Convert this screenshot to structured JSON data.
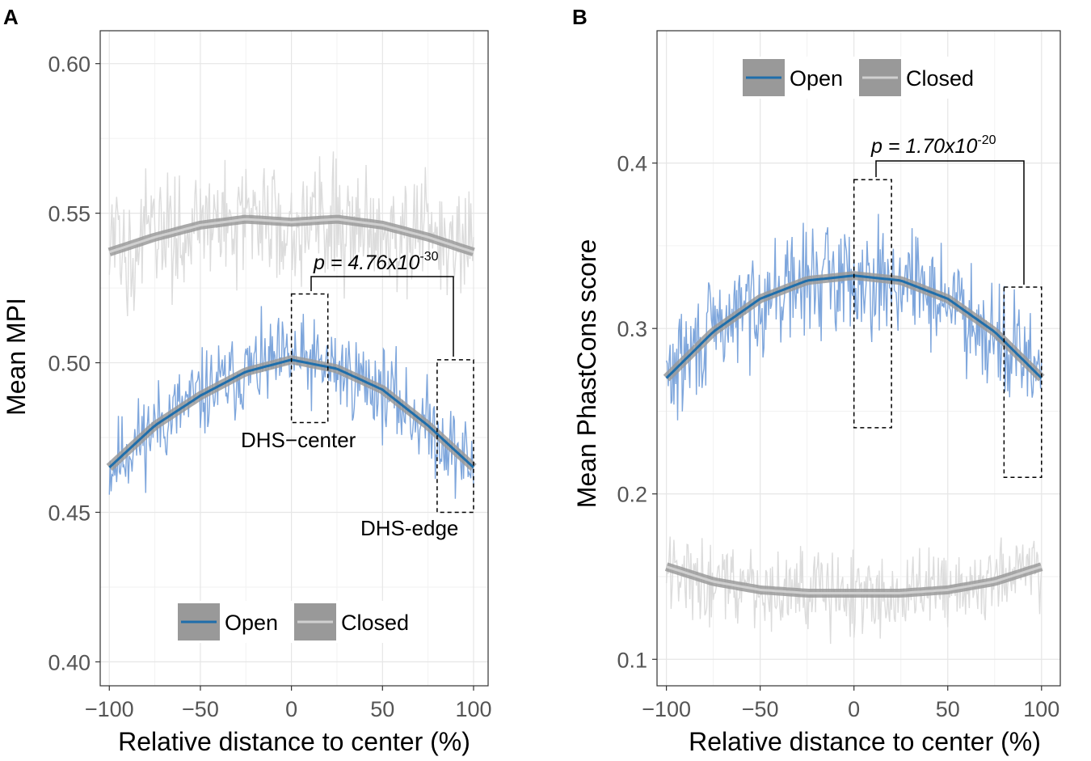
{
  "chart_data": [
    {
      "panel": "A",
      "type": "line",
      "xlabel": "Relative distance to center (%)",
      "ylabel": "Mean MPI",
      "xlim": [
        -105,
        108
      ],
      "ylim": [
        0.392,
        0.611
      ],
      "xticks": [
        -100,
        -50,
        0,
        50,
        100
      ],
      "xtick_labels": [
        "−100",
        "−50",
        "0",
        "50",
        "100"
      ],
      "yticks": [
        0.4,
        0.45,
        0.5,
        0.55,
        0.6
      ],
      "ytick_labels": [
        "0.40",
        "0.45",
        "0.50",
        "0.55",
        "0.60"
      ],
      "grid": true,
      "legend_position": "bottom-center",
      "series": [
        {
          "name": "Open",
          "line_color": "#1f6eab",
          "raw_color": "#7ea6dc",
          "trend": {
            "x": [
              -100,
              -75,
              -50,
              -25,
              0,
              25,
              50,
              75,
              100
            ],
            "y": [
              0.465,
              0.479,
              0.489,
              0.497,
              0.501,
              0.498,
              0.491,
              0.479,
              0.465
            ]
          },
          "noise_amplitude": 0.018
        },
        {
          "name": "Closed",
          "line_color": "#d0d0d0",
          "raw_color": "#dcdcdc",
          "trend": {
            "x": [
              -100,
              -75,
              -50,
              -25,
              0,
              25,
              50,
              75,
              100
            ],
            "y": [
              0.537,
              0.542,
              0.546,
              0.548,
              0.547,
              0.548,
              0.546,
              0.542,
              0.537
            ]
          },
          "noise_amplitude": 0.025
        }
      ],
      "regions": [
        {
          "label": "DHS−center",
          "x": [
            0,
            20
          ],
          "y": [
            0.48,
            0.523
          ]
        },
        {
          "label": "DHS-edge",
          "x": [
            80,
            100
          ],
          "y": [
            0.45,
            0.501
          ]
        }
      ],
      "annotation": {
        "prefix": "p = 4.76x10",
        "exponent": "-30"
      }
    },
    {
      "panel": "B",
      "type": "line",
      "xlabel": "Relative distance to center (%)",
      "ylabel": "Mean PhastCons score",
      "xlim": [
        -105,
        110
      ],
      "ylim": [
        0.084,
        0.48
      ],
      "xticks": [
        -100,
        -50,
        0,
        50,
        100
      ],
      "xtick_labels": [
        "−100",
        "−50",
        "0",
        "50",
        "100"
      ],
      "yticks": [
        0.1,
        0.2,
        0.3,
        0.4
      ],
      "ytick_labels": [
        "0.1",
        "0.2",
        "0.3",
        "0.4"
      ],
      "grid": true,
      "legend_position": "top-center",
      "series": [
        {
          "name": "Open",
          "line_color": "#1f6eab",
          "raw_color": "#7ea6dc",
          "trend": {
            "x": [
              -100,
              -75,
              -50,
              -25,
              0,
              25,
              50,
              75,
              100
            ],
            "y": [
              0.27,
              0.298,
              0.318,
              0.329,
              0.332,
              0.329,
              0.318,
              0.298,
              0.27
            ]
          },
          "noise_amplitude": 0.04
        },
        {
          "name": "Closed",
          "line_color": "#d0d0d0",
          "raw_color": "#dcdcdc",
          "trend": {
            "x": [
              -100,
              -75,
              -50,
              -25,
              0,
              25,
              50,
              75,
              100
            ],
            "y": [
              0.156,
              0.147,
              0.142,
              0.14,
              0.14,
              0.14,
              0.142,
              0.147,
              0.156
            ]
          },
          "noise_amplitude": 0.03
        }
      ],
      "regions": [
        {
          "label": "",
          "x": [
            0,
            20
          ],
          "y": [
            0.24,
            0.39
          ]
        },
        {
          "label": "",
          "x": [
            80,
            100
          ],
          "y": [
            0.21,
            0.325
          ]
        }
      ],
      "annotation": {
        "prefix": "p = 1.70x10",
        "exponent": "-20"
      }
    }
  ]
}
